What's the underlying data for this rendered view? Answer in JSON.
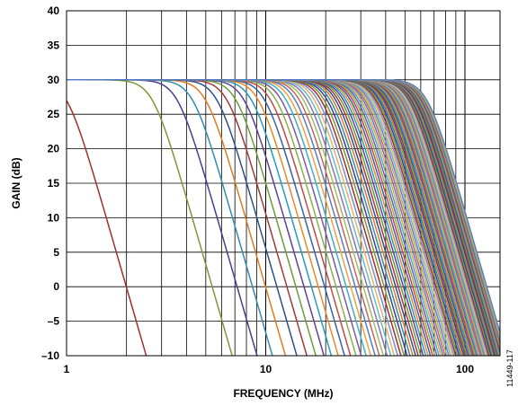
{
  "chart_data": {
    "type": "line",
    "title": "",
    "xlabel": "FREQUENCY (MHz)",
    "ylabel": "GAIN (dB)",
    "x_scale": "log",
    "xlim": [
      1,
      150
    ],
    "ylim": [
      -10,
      40
    ],
    "x_ticks": [
      1,
      10,
      100
    ],
    "x_tick_labels": [
      "1",
      "10",
      "100"
    ],
    "y_ticks": [
      -10,
      -5,
      0,
      5,
      10,
      15,
      20,
      25,
      30,
      35,
      40
    ],
    "y_tick_labels": [
      "–10",
      "–5",
      "0",
      "5",
      "10",
      "15",
      "20",
      "25",
      "30",
      "35",
      "40"
    ],
    "grid": true,
    "legend": "none",
    "figure_id": "11449-117",
    "passband_gain_db": 30,
    "series_cutoffs_mhz": [
      1.0,
      2.7,
      3.6,
      4.3,
      5.0,
      5.7,
      6.4,
      7.1,
      7.8,
      8.5,
      9.2,
      9.9,
      10.6,
      11.3,
      12.0,
      12.7,
      13.4,
      14.1,
      14.8,
      15.5,
      16.2,
      16.9,
      17.6,
      18.3,
      19.0,
      19.7,
      20.4,
      21.1,
      21.8,
      22.5,
      23.2,
      23.9,
      24.6,
      25.3,
      26.0,
      26.7,
      27.4,
      28.1,
      28.8,
      29.5,
      30.2,
      30.9,
      31.6,
      32.3,
      33.0,
      33.7,
      34.4,
      35.1,
      35.8,
      36.5,
      37.2,
      37.9,
      38.6,
      39.3,
      40.0,
      40.7,
      41.4,
      42.1,
      42.8,
      43.5,
      44.2,
      44.9,
      45.6,
      46.3,
      47.0,
      47.7,
      48.4,
      49.1,
      49.8,
      50.5,
      51.2,
      51.9,
      52.6,
      53.3,
      54.0,
      54.7,
      55.4,
      56.1,
      56.8,
      57.5,
      58.2,
      58.9,
      59.6,
      60.3,
      61.0,
      61.7,
      62.4,
      63.1,
      63.8,
      64.5
    ],
    "series_colors": [
      "#a0302e",
      "#7a9a3a",
      "#4a3d8f",
      "#2f8fb0",
      "#e07b22",
      "#2e4f8f",
      "#a23a3a",
      "#6d9b3b",
      "#5b4595",
      "#2a9ac0",
      "#e8892a",
      "#3a62a6",
      "#c04a4a",
      "#8cb04a",
      "#7a5aa8",
      "#3fb0c8",
      "#f0a040",
      "#5a7fc0",
      "#c86464",
      "#9cc060",
      "#9070b8",
      "#60c0d0",
      "#f2b060",
      "#7090d0"
    ],
    "rolloff_db_per_decade": 100
  }
}
